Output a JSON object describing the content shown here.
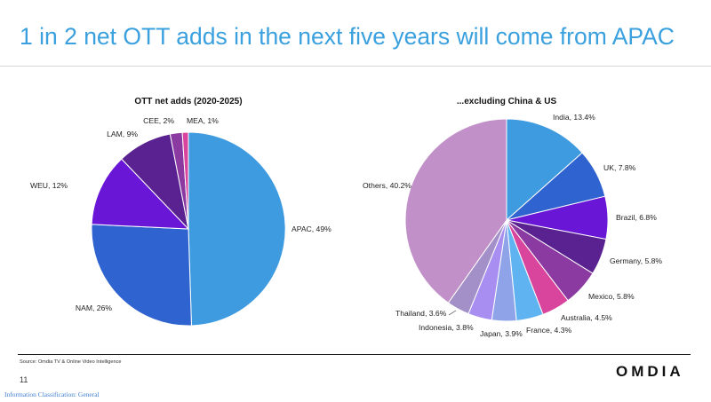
{
  "slide": {
    "title": "1 in 2 net OTT adds in the next five years will come from APAC",
    "source": "Source: Omdia TV & Online Video Intelligence",
    "page_number": "11",
    "logo_text": "OMDIA",
    "classification": "Information Classification: General"
  },
  "chart_data": [
    {
      "type": "pie",
      "title": "OTT net adds (2020-2025)",
      "slices": [
        {
          "label": "APAC, 49%",
          "value": 49,
          "color": "#3f9be0"
        },
        {
          "label": "NAM, 26%",
          "value": 26,
          "color": "#2f63cf"
        },
        {
          "label": "WEU, 12%",
          "value": 12,
          "color": "#6a16d6"
        },
        {
          "label": "LAM, 9%",
          "value": 9,
          "color": "#5a2291"
        },
        {
          "label": "CEE, 2%",
          "value": 2,
          "color": "#8b3aa2"
        },
        {
          "label": "MEA, 1%",
          "value": 1,
          "color": "#d9449c"
        }
      ]
    },
    {
      "type": "pie",
      "title": "...excluding China & US",
      "slices": [
        {
          "label": "India, 13.4%",
          "value": 13.4,
          "color": "#3f9be0"
        },
        {
          "label": "UK, 7.8%",
          "value": 7.8,
          "color": "#2f63cf"
        },
        {
          "label": "Brazil, 6.8%",
          "value": 6.8,
          "color": "#6a16d6"
        },
        {
          "label": "Germany, 5.8%",
          "value": 5.8,
          "color": "#5a2291"
        },
        {
          "label": "Mexico, 5.8%",
          "value": 5.8,
          "color": "#8b3aa2"
        },
        {
          "label": "Australia, 4.5%",
          "value": 4.5,
          "color": "#d9449c"
        },
        {
          "label": "France, 4.3%",
          "value": 4.3,
          "color": "#5fb3f0"
        },
        {
          "label": "Japan, 3.9%",
          "value": 3.9,
          "color": "#8fa3e8"
        },
        {
          "label": "Indonesia, 3.8%",
          "value": 3.8,
          "color": "#a88ef0"
        },
        {
          "label": "Thailand, 3.6%",
          "value": 3.6,
          "color": "#a390c8"
        },
        {
          "label": "Others, 40.2%",
          "value": 40.2,
          "color": "#c190c8"
        }
      ]
    }
  ]
}
